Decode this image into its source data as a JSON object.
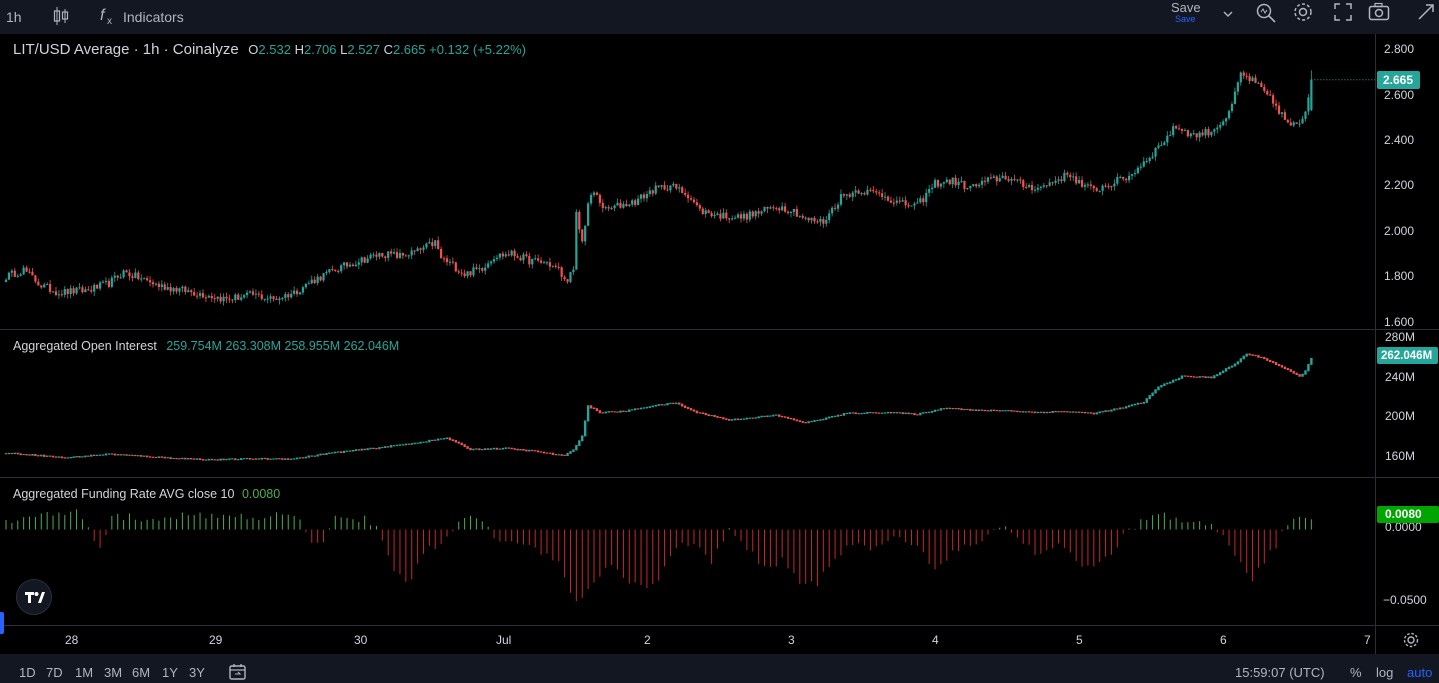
{
  "toolbar": {
    "interval": "1h",
    "indicators_label": "Indicators",
    "save_label": "Save",
    "save_sub_label": "Save"
  },
  "colors": {
    "up": "#26a69a",
    "down": "#ef5350",
    "funding_up": "#4caf50",
    "funding_down": "#c62828",
    "background": "#000000",
    "grid": "#2a2e39"
  },
  "main_legend": {
    "title": "LIT/USD Average · 1h · Coinalyze",
    "o_label": "O",
    "o": "2.532",
    "h_label": "H",
    "h": "2.706",
    "l_label": "L",
    "l": "2.527",
    "c_label": "C",
    "c": "2.665",
    "change": "+0.132 (+5.22%)"
  },
  "oi_legend": {
    "title": "Aggregated Open Interest",
    "o": "259.754M",
    "h": "263.308M",
    "l": "258.955M",
    "c": "262.046M"
  },
  "fr_legend": {
    "title": "Aggregated Funding Rate AVG close 10",
    "value": "0.0080"
  },
  "price_axis": {
    "ticks": [
      "2.800",
      "2.600",
      "2.400",
      "2.200",
      "2.000",
      "1.800",
      "1.600"
    ],
    "current": "2.665"
  },
  "oi_axis": {
    "ticks": [
      "280M",
      "240M",
      "200M",
      "160M"
    ],
    "current": "262.046M"
  },
  "fr_axis": {
    "ticks": [
      "0.0000",
      "−0.0500"
    ],
    "current": "0.0080"
  },
  "time_axis": {
    "labels": [
      "28",
      "29",
      "30",
      "Jul",
      "2",
      "3",
      "4",
      "5",
      "6",
      "7"
    ]
  },
  "bottom_bar": {
    "ranges": [
      "1D",
      "7D",
      "1M",
      "3M",
      "6M",
      "1Y",
      "3Y"
    ],
    "clock": "15:59:07 (UTC)",
    "percent": "%",
    "log": "log",
    "auto": "auto"
  },
  "chart_data": [
    {
      "type": "candlestick",
      "title": "LIT/USD Average · 1h · Coinalyze",
      "x_labels": [
        "28",
        "29",
        "30",
        "Jul",
        "2",
        "3",
        "4",
        "5",
        "6",
        "7"
      ],
      "ylim": [
        1.6,
        2.8
      ],
      "anchors": [
        [
          0,
          1.8
        ],
        [
          6,
          1.83
        ],
        [
          12,
          1.76
        ],
        [
          18,
          1.73
        ],
        [
          28,
          1.74
        ],
        [
          35,
          1.77
        ],
        [
          40,
          1.82
        ],
        [
          46,
          1.79
        ],
        [
          52,
          1.76
        ],
        [
          60,
          1.74
        ],
        [
          68,
          1.72
        ],
        [
          75,
          1.7
        ],
        [
          84,
          1.72
        ],
        [
          91,
          1.7
        ],
        [
          98,
          1.73
        ],
        [
          104,
          1.78
        ],
        [
          112,
          1.83
        ],
        [
          120,
          1.87
        ],
        [
          128,
          1.9
        ],
        [
          134,
          1.89
        ],
        [
          140,
          1.91
        ],
        [
          146,
          1.95
        ],
        [
          148,
          1.88
        ],
        [
          152,
          1.85
        ],
        [
          156,
          1.81
        ],
        [
          162,
          1.84
        ],
        [
          166,
          1.89
        ],
        [
          172,
          1.9
        ],
        [
          178,
          1.87
        ],
        [
          184,
          1.86
        ],
        [
          188,
          1.83
        ],
        [
          190,
          1.78
        ],
        [
          193,
          1.82
        ],
        [
          194,
          2.07
        ],
        [
          196,
          1.95
        ],
        [
          198,
          2.12
        ],
        [
          200,
          2.17
        ],
        [
          204,
          2.09
        ],
        [
          208,
          2.11
        ],
        [
          214,
          2.13
        ],
        [
          220,
          2.18
        ],
        [
          226,
          2.2
        ],
        [
          232,
          2.16
        ],
        [
          236,
          2.09
        ],
        [
          242,
          2.07
        ],
        [
          250,
          2.06
        ],
        [
          256,
          2.08
        ],
        [
          262,
          2.11
        ],
        [
          268,
          2.09
        ],
        [
          272,
          2.05
        ],
        [
          278,
          2.04
        ],
        [
          284,
          2.15
        ],
        [
          290,
          2.18
        ],
        [
          298,
          2.16
        ],
        [
          304,
          2.12
        ],
        [
          310,
          2.11
        ],
        [
          316,
          2.21
        ],
        [
          322,
          2.22
        ],
        [
          328,
          2.19
        ],
        [
          334,
          2.22
        ],
        [
          340,
          2.24
        ],
        [
          346,
          2.2
        ],
        [
          352,
          2.19
        ],
        [
          358,
          2.23
        ],
        [
          362,
          2.25
        ],
        [
          366,
          2.2
        ],
        [
          370,
          2.18
        ],
        [
          376,
          2.21
        ],
        [
          382,
          2.24
        ],
        [
          386,
          2.29
        ],
        [
          392,
          2.37
        ],
        [
          398,
          2.46
        ],
        [
          404,
          2.42
        ],
        [
          410,
          2.44
        ],
        [
          416,
          2.51
        ],
        [
          420,
          2.69
        ],
        [
          424,
          2.66
        ],
        [
          428,
          2.61
        ],
        [
          432,
          2.55
        ],
        [
          436,
          2.47
        ],
        [
          440,
          2.46
        ],
        [
          442,
          2.53
        ],
        [
          444,
          2.665
        ]
      ],
      "last": {
        "open": 2.532,
        "high": 2.706,
        "low": 2.527,
        "close": 2.665
      }
    },
    {
      "type": "line",
      "title": "Aggregated Open Interest",
      "ylim": [
        140,
        290
      ],
      "unit": "M",
      "anchors": [
        [
          0,
          162
        ],
        [
          10,
          160
        ],
        [
          20,
          157
        ],
        [
          35,
          161
        ],
        [
          45,
          159
        ],
        [
          55,
          157
        ],
        [
          70,
          155
        ],
        [
          84,
          156
        ],
        [
          98,
          156
        ],
        [
          110,
          162
        ],
        [
          125,
          167
        ],
        [
          140,
          173
        ],
        [
          150,
          178
        ],
        [
          158,
          166
        ],
        [
          170,
          167
        ],
        [
          180,
          164
        ],
        [
          190,
          159
        ],
        [
          193,
          166
        ],
        [
          196,
          180
        ],
        [
          198,
          212
        ],
        [
          202,
          205
        ],
        [
          210,
          206
        ],
        [
          220,
          212
        ],
        [
          228,
          215
        ],
        [
          234,
          206
        ],
        [
          246,
          197
        ],
        [
          262,
          202
        ],
        [
          272,
          194
        ],
        [
          286,
          204
        ],
        [
          300,
          205
        ],
        [
          310,
          203
        ],
        [
          320,
          210
        ],
        [
          330,
          207
        ],
        [
          340,
          207
        ],
        [
          350,
          205
        ],
        [
          360,
          206
        ],
        [
          370,
          204
        ],
        [
          380,
          210
        ],
        [
          387,
          216
        ],
        [
          392,
          232
        ],
        [
          400,
          243
        ],
        [
          410,
          242
        ],
        [
          418,
          256
        ],
        [
          422,
          267
        ],
        [
          428,
          262
        ],
        [
          434,
          253
        ],
        [
          440,
          243
        ],
        [
          442,
          249
        ],
        [
          444,
          262
        ]
      ]
    },
    {
      "type": "bar",
      "title": "Aggregated Funding Rate AVG close 10",
      "ylim": [
        -0.07,
        0.02
      ],
      "last": 0.008,
      "anchors": [
        [
          0,
          0.007
        ],
        [
          8,
          0.009
        ],
        [
          14,
          0.012
        ],
        [
          24,
          0.013
        ],
        [
          32,
          -0.015
        ],
        [
          36,
          0.011
        ],
        [
          50,
          0.008
        ],
        [
          62,
          0.012
        ],
        [
          80,
          0.01
        ],
        [
          94,
          0.011
        ],
        [
          100,
          0.009
        ],
        [
          104,
          -0.013
        ],
        [
          108,
          -0.008
        ],
        [
          112,
          0.012
        ],
        [
          122,
          0.008
        ],
        [
          126,
          0.002
        ],
        [
          132,
          -0.03
        ],
        [
          137,
          -0.043
        ],
        [
          142,
          -0.018
        ],
        [
          150,
          -0.007
        ],
        [
          154,
          0.008
        ],
        [
          160,
          0.009
        ],
        [
          166,
          -0.004
        ],
        [
          170,
          -0.012
        ],
        [
          176,
          -0.01
        ],
        [
          182,
          -0.018
        ],
        [
          188,
          -0.025
        ],
        [
          194,
          -0.058
        ],
        [
          200,
          -0.043
        ],
        [
          206,
          -0.025
        ],
        [
          212,
          -0.04
        ],
        [
          218,
          -0.048
        ],
        [
          222,
          -0.038
        ],
        [
          228,
          -0.012
        ],
        [
          234,
          -0.01
        ],
        [
          240,
          -0.025
        ],
        [
          246,
          0.002
        ],
        [
          252,
          -0.014
        ],
        [
          258,
          -0.03
        ],
        [
          264,
          -0.024
        ],
        [
          270,
          -0.04
        ],
        [
          276,
          -0.042
        ],
        [
          282,
          -0.02
        ],
        [
          288,
          -0.012
        ],
        [
          294,
          -0.016
        ],
        [
          302,
          -0.006
        ],
        [
          310,
          -0.012
        ],
        [
          316,
          -0.03
        ],
        [
          322,
          -0.018
        ],
        [
          328,
          -0.012
        ],
        [
          334,
          -0.005
        ],
        [
          340,
          0.004
        ],
        [
          346,
          -0.012
        ],
        [
          352,
          -0.02
        ],
        [
          358,
          -0.01
        ],
        [
          364,
          -0.026
        ],
        [
          370,
          -0.03
        ],
        [
          376,
          -0.02
        ],
        [
          380,
          -0.004
        ],
        [
          386,
          0.006
        ],
        [
          392,
          0.012
        ],
        [
          398,
          0.008
        ],
        [
          404,
          0.004
        ],
        [
          410,
          0.005
        ],
        [
          414,
          -0.004
        ],
        [
          418,
          -0.02
        ],
        [
          424,
          -0.04
        ],
        [
          428,
          -0.025
        ],
        [
          432,
          -0.012
        ],
        [
          436,
          0.004
        ],
        [
          440,
          0.008
        ],
        [
          444,
          0.008
        ]
      ]
    }
  ]
}
